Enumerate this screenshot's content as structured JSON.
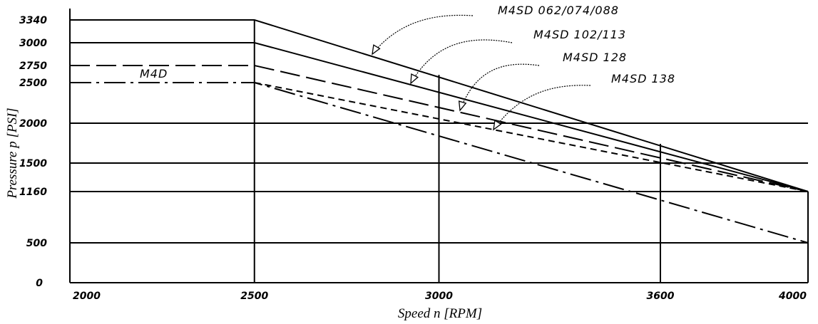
{
  "chart_data": {
    "type": "line",
    "xlabel": "Speed n [RPM]",
    "ylabel": "Pressure p [PSI]",
    "xlim": [
      2000,
      4000
    ],
    "ylim": [
      0,
      3340
    ],
    "x_ticks": [
      2000,
      2500,
      3000,
      3600,
      4000
    ],
    "y_ticks": [
      0,
      500,
      1160,
      1500,
      2000,
      2500,
      2750,
      3000,
      3340
    ],
    "grid": true,
    "series": [
      {
        "name": "M4SD 062/074/088",
        "style": "solid",
        "x": [
          2000,
          2500,
          4000
        ],
        "y": [
          3340,
          3340,
          1160
        ]
      },
      {
        "name": "M4SD 102/113",
        "style": "solid",
        "x": [
          2000,
          2500,
          4000
        ],
        "y": [
          3000,
          3000,
          1160
        ]
      },
      {
        "name": "M4SD 128",
        "style": "long-dash",
        "x": [
          2000,
          2500,
          4000
        ],
        "y": [
          2750,
          2750,
          1160
        ]
      },
      {
        "name": "M4SD 138",
        "style": "short-dash",
        "x": [
          2500,
          4000
        ],
        "y": [
          2500,
          1160
        ]
      },
      {
        "name": "M4D",
        "style": "dash-dot",
        "x": [
          2000,
          2500,
          4000
        ],
        "y": [
          2500,
          2500,
          500
        ]
      }
    ],
    "annotations": [
      {
        "text": "M4SD 062/074/088",
        "points_to": "M4SD 062/074/088"
      },
      {
        "text": "M4SD 102/113",
        "points_to": "M4SD 102/113"
      },
      {
        "text": "M4SD 128",
        "points_to": "M4SD 128"
      },
      {
        "text": "M4SD 138",
        "points_to": "M4SD 138"
      },
      {
        "text": "M4D",
        "points_to": "M4D"
      }
    ]
  }
}
